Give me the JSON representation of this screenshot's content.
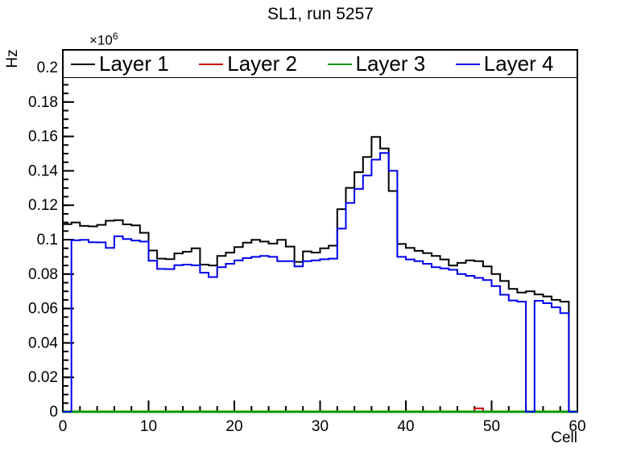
{
  "title": "SL1, run 5257",
  "chart_data": {
    "type": "histogram-step",
    "title": "SL1, run 5257",
    "xlabel": "Cell",
    "ylabel": "Hz",
    "y_power": {
      "base": "×10",
      "exp": "6"
    },
    "x_min": 0,
    "x_max": 60,
    "y_min": 0,
    "y_max_display": 0.2103,
    "x_ticks": {
      "major": [
        0,
        10,
        20,
        30,
        40,
        50,
        60
      ],
      "minor_step": 2
    },
    "y_ticks": {
      "major_values": [
        0,
        0.02,
        0.04,
        0.06,
        0.08,
        0.1,
        0.12,
        0.14,
        0.16,
        0.18,
        0.2
      ],
      "major_labels": [
        "0",
        "0.02",
        "0.04",
        "0.06",
        "0.08",
        "0.1",
        "0.12",
        "0.14",
        "0.16",
        "0.18",
        "0.2"
      ],
      "minor_step": 0.005
    },
    "grid": false,
    "legend_position": "top-inside",
    "series": [
      {
        "name": "Layer 1",
        "color": "#000000",
        "line_width": 2,
        "values": [
          0.109,
          0.11,
          0.108,
          0.1077,
          0.1086,
          0.111,
          0.1113,
          0.1089,
          0.1083,
          0.104,
          0.0937,
          0.089,
          0.0887,
          0.092,
          0.093,
          0.095,
          0.0855,
          0.085,
          0.0905,
          0.0925,
          0.0957,
          0.0983,
          0.0999,
          0.0989,
          0.0977,
          0.0999,
          0.096,
          0.0871,
          0.0932,
          0.0925,
          0.095,
          0.0965,
          0.1177,
          0.1301,
          0.1392,
          0.148,
          0.1597,
          0.153,
          0.1283,
          0.0975,
          0.0952,
          0.0935,
          0.0922,
          0.0905,
          0.0885,
          0.085,
          0.0865,
          0.088,
          0.0875,
          0.0845,
          0.08,
          0.076,
          0.0714,
          0.0693,
          0.07,
          0.0682,
          0.067,
          0.065,
          0.064,
          0
        ]
      },
      {
        "name": "Layer 2",
        "color": "#cc0000",
        "line_width": 2,
        "values": [
          0,
          0,
          0,
          0,
          0,
          0,
          0,
          0,
          0,
          0,
          0,
          0,
          0,
          0,
          0,
          0,
          0,
          0,
          0,
          0,
          0,
          0,
          0,
          0,
          0,
          0,
          0,
          0,
          0,
          0,
          0,
          0,
          0,
          0,
          0,
          0,
          0,
          0,
          0,
          0,
          0,
          0,
          0,
          0,
          0,
          0,
          0,
          0,
          0.002,
          0,
          0,
          0,
          0,
          0,
          0,
          0,
          0,
          0,
          0,
          0
        ]
      },
      {
        "name": "Layer 3",
        "color": "#009900",
        "line_width": 3,
        "values": [
          0,
          0,
          0,
          0,
          0,
          0,
          0,
          0,
          0,
          0,
          0,
          0,
          0,
          0,
          0,
          0,
          0,
          0,
          0,
          0,
          0,
          0,
          0,
          0,
          0,
          0,
          0,
          0,
          0,
          0,
          0,
          0,
          0,
          0,
          0,
          0,
          0,
          0,
          0,
          0,
          0,
          0,
          0,
          0,
          0,
          0,
          0,
          0,
          0,
          0,
          0,
          0,
          0,
          0,
          0,
          0,
          0,
          0,
          0,
          0
        ]
      },
      {
        "name": "Layer 4",
        "color": "#0000ee",
        "line_width": 2,
        "values": [
          0,
          0.0997,
          0.0999,
          0.0985,
          0.0984,
          0.0952,
          0.102,
          0.1004,
          0.0995,
          0.0989,
          0.0877,
          0.083,
          0.0829,
          0.0852,
          0.0855,
          0.0851,
          0.0808,
          0.0783,
          0.084,
          0.086,
          0.088,
          0.0893,
          0.09,
          0.0905,
          0.09,
          0.0875,
          0.0875,
          0.0845,
          0.0875,
          0.088,
          0.0886,
          0.089,
          0.1064,
          0.1213,
          0.1295,
          0.1373,
          0.1465,
          0.1504,
          0.14,
          0.09,
          0.0885,
          0.0875,
          0.086,
          0.084,
          0.0833,
          0.0825,
          0.08,
          0.079,
          0.0778,
          0.0765,
          0.073,
          0.068,
          0.0647,
          0.064,
          0,
          0.0645,
          0.0631,
          0.0607,
          0.0573,
          0
        ]
      }
    ]
  }
}
